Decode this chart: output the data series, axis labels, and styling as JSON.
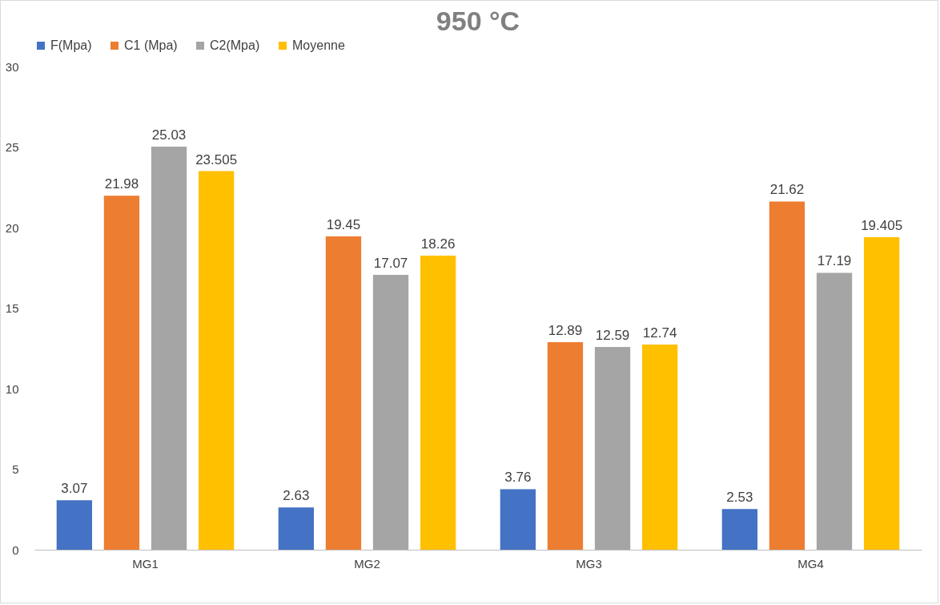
{
  "chart_data": {
    "type": "bar",
    "title": "950 °C",
    "categories": [
      "MG1",
      "MG2",
      "MG3",
      "MG4"
    ],
    "series": [
      {
        "name": "F(Mpa)",
        "color": "#4472c4",
        "values": [
          3.07,
          2.63,
          3.76,
          2.53
        ]
      },
      {
        "name": "C1 (Mpa)",
        "color": "#ed7d31",
        "values": [
          21.98,
          19.45,
          12.89,
          21.62
        ]
      },
      {
        "name": "C2(Mpa)",
        "color": "#a5a5a5",
        "values": [
          25.03,
          17.07,
          12.59,
          17.19
        ]
      },
      {
        "name": "Moyenne",
        "color": "#ffc000",
        "values": [
          23.505,
          18.26,
          12.74,
          19.405
        ]
      }
    ],
    "ylim": [
      0,
      30
    ],
    "yticks": [
      0,
      5,
      10,
      15,
      20,
      25,
      30
    ],
    "data_labels": true,
    "legend": "top"
  }
}
